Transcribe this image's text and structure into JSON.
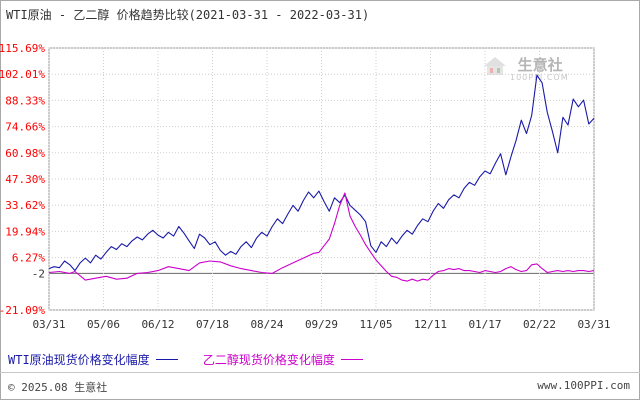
{
  "header": {
    "title": "WTI原油 - 乙二醇 价格趋势比较",
    "date_range": "(2021-03-31 - 2022-03-31)"
  },
  "chart_data": {
    "type": "line",
    "title": "WTI原油 - 乙二醇 价格趋势比较",
    "y_ticks": [
      "115.69%",
      "102.01%",
      "88.33%",
      "74.66%",
      "60.98%",
      "47.30%",
      "33.62%",
      "19.94%",
      "6.27%",
      "-2",
      "-21.09%"
    ],
    "y_tick_values": [
      115.69,
      102.01,
      88.33,
      74.66,
      60.98,
      47.3,
      33.62,
      19.94,
      6.27,
      -2,
      -21.09
    ],
    "ylim": [
      -21.09,
      115.69
    ],
    "x_ticks": [
      "03/31",
      "05/06",
      "06/12",
      "07/18",
      "08/24",
      "09/29",
      "11/05",
      "12/11",
      "01/17",
      "02/22",
      "03/31"
    ],
    "grid": true,
    "legend_position": "bottom-left",
    "series": [
      {
        "name": "WTI原油现货价格变化幅度",
        "color": "#1a1aa8",
        "points": [
          [
            0,
            0.5
          ],
          [
            2,
            1.5
          ],
          [
            4,
            1.0
          ],
          [
            6,
            4.5
          ],
          [
            8,
            2.5
          ],
          [
            10,
            -0.5
          ],
          [
            12,
            3.5
          ],
          [
            14,
            6.0
          ],
          [
            16,
            3.5
          ],
          [
            18,
            7.5
          ],
          [
            20,
            5.5
          ],
          [
            22,
            9.0
          ],
          [
            24,
            12.0
          ],
          [
            26,
            10.5
          ],
          [
            28,
            13.5
          ],
          [
            30,
            12.0
          ],
          [
            32,
            15.0
          ],
          [
            34,
            17.0
          ],
          [
            36,
            15.5
          ],
          [
            38,
            18.5
          ],
          [
            40,
            20.5
          ],
          [
            42,
            18.0
          ],
          [
            44,
            16.5
          ],
          [
            46,
            19.5
          ],
          [
            48,
            17.5
          ],
          [
            50,
            22.5
          ],
          [
            52,
            19.0
          ],
          [
            54,
            15.0
          ],
          [
            56,
            11.0
          ],
          [
            58,
            18.5
          ],
          [
            60,
            16.5
          ],
          [
            62,
            13.0
          ],
          [
            64,
            14.5
          ],
          [
            66,
            10.0
          ],
          [
            68,
            7.5
          ],
          [
            70,
            9.5
          ],
          [
            72,
            8.0
          ],
          [
            74,
            12.0
          ],
          [
            76,
            14.5
          ],
          [
            78,
            11.5
          ],
          [
            80,
            16.5
          ],
          [
            82,
            19.5
          ],
          [
            84,
            17.5
          ],
          [
            86,
            22.5
          ],
          [
            88,
            26.5
          ],
          [
            90,
            24.0
          ],
          [
            92,
            29.0
          ],
          [
            94,
            33.5
          ],
          [
            96,
            30.5
          ],
          [
            98,
            36.0
          ],
          [
            100,
            40.5
          ],
          [
            102,
            37.5
          ],
          [
            104,
            41.0
          ],
          [
            106,
            35.5
          ],
          [
            108,
            30.5
          ],
          [
            110,
            37.5
          ],
          [
            112,
            35.0
          ],
          [
            114,
            39.0
          ],
          [
            116,
            33.5
          ],
          [
            118,
            31.0
          ],
          [
            120,
            28.5
          ],
          [
            122,
            25.0
          ],
          [
            124,
            12.5
          ],
          [
            126,
            9.0
          ],
          [
            128,
            14.5
          ],
          [
            130,
            12.0
          ],
          [
            132,
            16.5
          ],
          [
            134,
            13.5
          ],
          [
            136,
            17.5
          ],
          [
            138,
            20.5
          ],
          [
            140,
            18.5
          ],
          [
            142,
            23.0
          ],
          [
            144,
            26.5
          ],
          [
            146,
            25.0
          ],
          [
            148,
            30.5
          ],
          [
            150,
            34.5
          ],
          [
            152,
            32.0
          ],
          [
            154,
            36.5
          ],
          [
            156,
            39.0
          ],
          [
            158,
            37.5
          ],
          [
            160,
            42.5
          ],
          [
            162,
            45.5
          ],
          [
            164,
            44.0
          ],
          [
            166,
            48.5
          ],
          [
            168,
            51.5
          ],
          [
            170,
            50.0
          ],
          [
            172,
            55.5
          ],
          [
            174,
            60.5
          ],
          [
            176,
            49.5
          ],
          [
            178,
            59.0
          ],
          [
            180,
            67.5
          ],
          [
            182,
            78.0
          ],
          [
            184,
            71.0
          ],
          [
            186,
            80.5
          ],
          [
            188,
            101.5
          ],
          [
            190,
            97.5
          ],
          [
            192,
            82.0
          ],
          [
            194,
            72.0
          ],
          [
            196,
            61.0
          ],
          [
            198,
            79.5
          ],
          [
            200,
            75.5
          ],
          [
            202,
            89.0
          ],
          [
            204,
            85.0
          ],
          [
            206,
            88.5
          ],
          [
            208,
            76.0
          ],
          [
            210,
            79.0
          ]
        ]
      },
      {
        "name": "乙二醇现货价格变化幅度",
        "color": "#cc00cc",
        "points": [
          [
            0,
            -1.5
          ],
          [
            4,
            -1.0
          ],
          [
            8,
            -2.0
          ],
          [
            10,
            -1.0
          ],
          [
            14,
            -5.5
          ],
          [
            18,
            -4.5
          ],
          [
            22,
            -3.5
          ],
          [
            26,
            -5.0
          ],
          [
            30,
            -4.5
          ],
          [
            34,
            -2.0
          ],
          [
            38,
            -1.5
          ],
          [
            42,
            -0.5
          ],
          [
            46,
            1.5
          ],
          [
            50,
            0.5
          ],
          [
            54,
            -0.5
          ],
          [
            58,
            3.5
          ],
          [
            62,
            4.5
          ],
          [
            66,
            4.0
          ],
          [
            70,
            2.0
          ],
          [
            74,
            0.5
          ],
          [
            78,
            -0.5
          ],
          [
            82,
            -1.5
          ],
          [
            86,
            -2.0
          ],
          [
            90,
            1.0
          ],
          [
            94,
            3.5
          ],
          [
            98,
            6.0
          ],
          [
            102,
            8.5
          ],
          [
            104,
            9.0
          ],
          [
            106,
            12.5
          ],
          [
            108,
            16.0
          ],
          [
            110,
            24.0
          ],
          [
            112,
            33.5
          ],
          [
            114,
            40.0
          ],
          [
            116,
            28.0
          ],
          [
            118,
            22.5
          ],
          [
            120,
            18.0
          ],
          [
            122,
            13.0
          ],
          [
            124,
            9.0
          ],
          [
            126,
            5.0
          ],
          [
            128,
            2.0
          ],
          [
            130,
            -1.0
          ],
          [
            132,
            -3.5
          ],
          [
            134,
            -4.0
          ],
          [
            136,
            -5.5
          ],
          [
            138,
            -6.0
          ],
          [
            140,
            -5.0
          ],
          [
            142,
            -6.0
          ],
          [
            144,
            -5.0
          ],
          [
            146,
            -5.5
          ],
          [
            148,
            -3.0
          ],
          [
            150,
            -1.0
          ],
          [
            152,
            -0.5
          ],
          [
            154,
            0.5
          ],
          [
            156,
            0.0
          ],
          [
            158,
            0.5
          ],
          [
            160,
            -0.5
          ],
          [
            162,
            -0.5
          ],
          [
            164,
            -1.0
          ],
          [
            166,
            -1.5
          ],
          [
            168,
            -0.5
          ],
          [
            170,
            -1.0
          ],
          [
            172,
            -1.5
          ],
          [
            174,
            -1.0
          ],
          [
            176,
            0.5
          ],
          [
            178,
            1.5
          ],
          [
            180,
            0.0
          ],
          [
            182,
            -1.0
          ],
          [
            184,
            -0.5
          ],
          [
            186,
            2.5
          ],
          [
            188,
            3.0
          ],
          [
            190,
            0.5
          ],
          [
            192,
            -1.5
          ],
          [
            194,
            -1.0
          ],
          [
            196,
            -0.5
          ],
          [
            198,
            -1.0
          ],
          [
            200,
            -0.5
          ],
          [
            202,
            -1.0
          ],
          [
            204,
            -0.5
          ],
          [
            206,
            -0.5
          ],
          [
            208,
            -1.0
          ],
          [
            210,
            -0.5
          ]
        ]
      }
    ]
  },
  "legend": {
    "series1_label": "WTI原油现货价格变化幅度",
    "series2_label": "乙二醇现货价格变化幅度"
  },
  "watermark": {
    "cn": "生意社",
    "en": "100PPI.COM"
  },
  "footer": {
    "copyright": "© 2025.08 生意社",
    "site": "www.100PPI.com"
  }
}
